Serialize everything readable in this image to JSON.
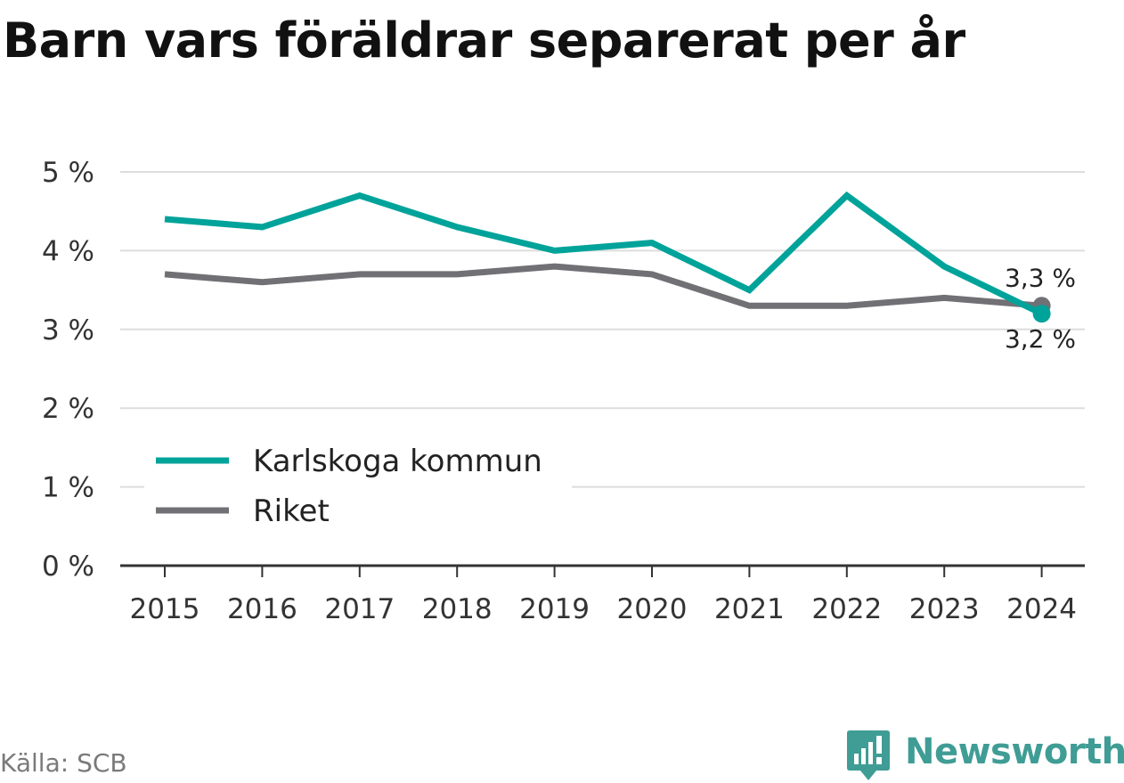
{
  "title": "Barn vars föräldrar separerat per år",
  "source": "Källa: SCB",
  "brand": {
    "name": "Newsworthy",
    "icon": "newsworthy-logo-icon",
    "color": "#3f9d95"
  },
  "chart_data": {
    "type": "line",
    "title": "Barn vars föräldrar separerat per år",
    "xlabel": "",
    "ylabel": "",
    "categories": [
      "2015",
      "2016",
      "2017",
      "2018",
      "2019",
      "2020",
      "2021",
      "2022",
      "2023",
      "2024"
    ],
    "y_ticks": [
      {
        "value": 0,
        "label": "0 %"
      },
      {
        "value": 1,
        "label": "1 %"
      },
      {
        "value": 2,
        "label": "2 %"
      },
      {
        "value": 3,
        "label": "3 %"
      },
      {
        "value": 4,
        "label": "4 %"
      },
      {
        "value": 5,
        "label": "5 %"
      }
    ],
    "ylim": [
      0,
      5
    ],
    "grid": true,
    "legend_position": "bottom-left",
    "series": [
      {
        "name": "Karlskoga kommun",
        "color": "#00a39a",
        "values": [
          4.4,
          4.3,
          4.7,
          4.3,
          4.0,
          4.1,
          3.5,
          4.7,
          3.8,
          3.2
        ],
        "end_label": "3,2 %"
      },
      {
        "name": "Riket",
        "color": "#717075",
        "values": [
          3.7,
          3.6,
          3.7,
          3.7,
          3.8,
          3.7,
          3.3,
          3.3,
          3.4,
          3.3
        ],
        "end_label": "3,3 %"
      }
    ]
  }
}
